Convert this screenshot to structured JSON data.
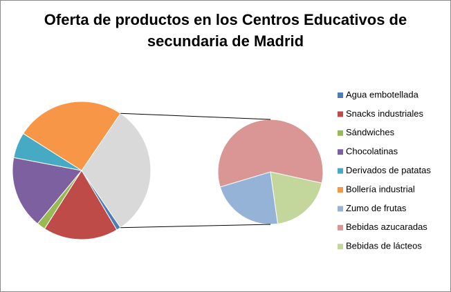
{
  "chart_data": {
    "type": "pie",
    "title": "Oferta de productos en los Centros Educativos de secundaria de Madrid",
    "categories": [
      "Agua embotellada",
      "Snacks industriales",
      "Sándwiches",
      "Chocolatinas",
      "Derivados de patatas",
      "Bollería industrial",
      "Zumo de frutas",
      "Bebidas azucaradas",
      "Bebidas de lácteos"
    ],
    "values": [
      1,
      17.5,
      2,
      17,
      6,
      25.5,
      7,
      18,
      6
    ],
    "colors": [
      "#4a7ebb",
      "#be4b48",
      "#98b954",
      "#7d60a0",
      "#46aac4",
      "#f79646",
      "#95b3d7",
      "#d99694",
      "#c3d69b"
    ],
    "split": 3,
    "other_color": "#d9d9d9",
    "legend": "right"
  }
}
